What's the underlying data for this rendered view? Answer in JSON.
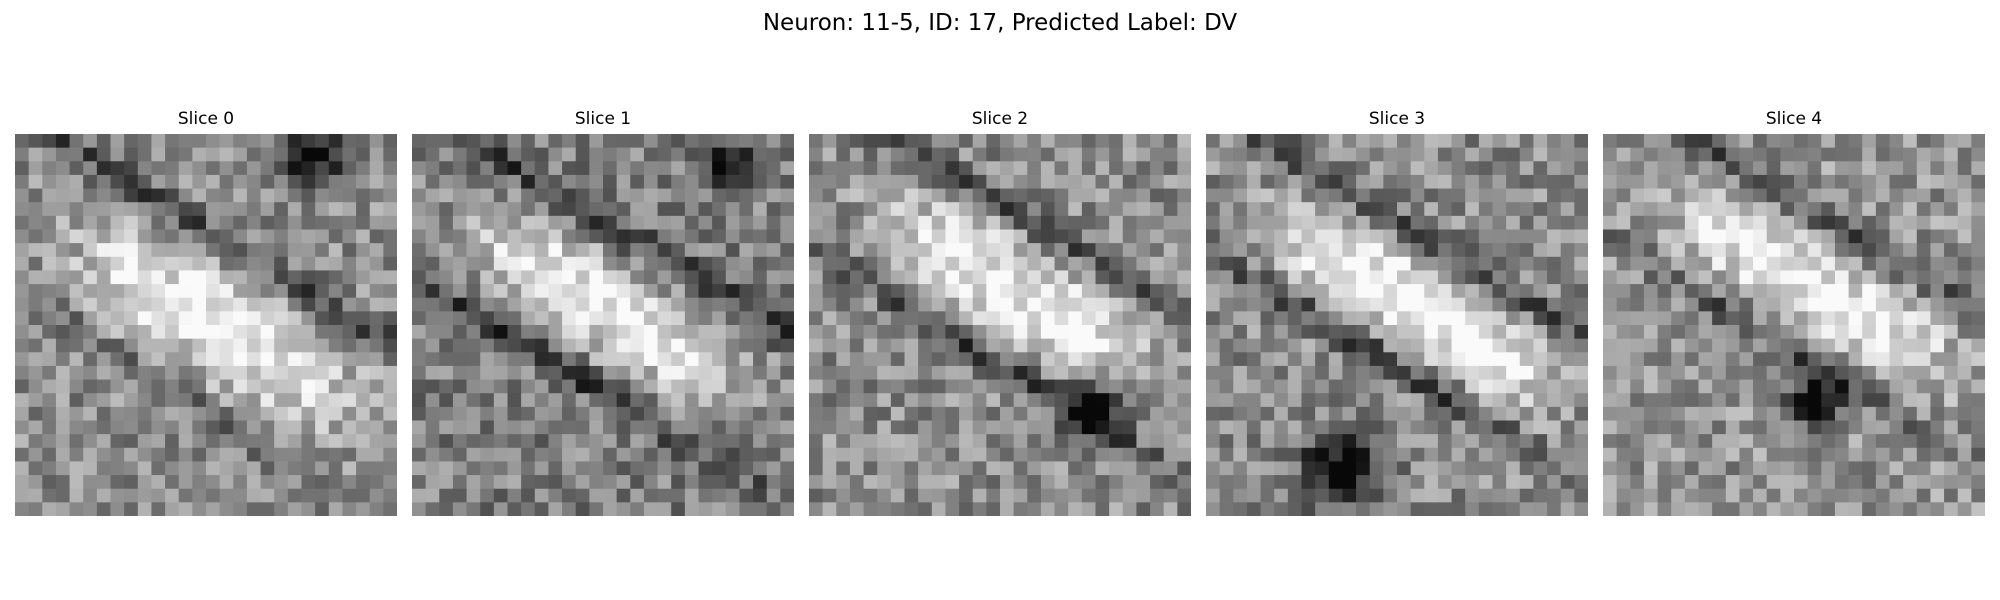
{
  "figure": {
    "title": "Neuron: 11-5, ID: 17, Predicted Label: DV"
  },
  "panels": [
    {
      "title": "Slice 0"
    },
    {
      "title": "Slice 1"
    },
    {
      "title": "Slice 2"
    },
    {
      "title": "Slice 3"
    },
    {
      "title": "Slice 4"
    }
  ],
  "colormap": "grayscale"
}
